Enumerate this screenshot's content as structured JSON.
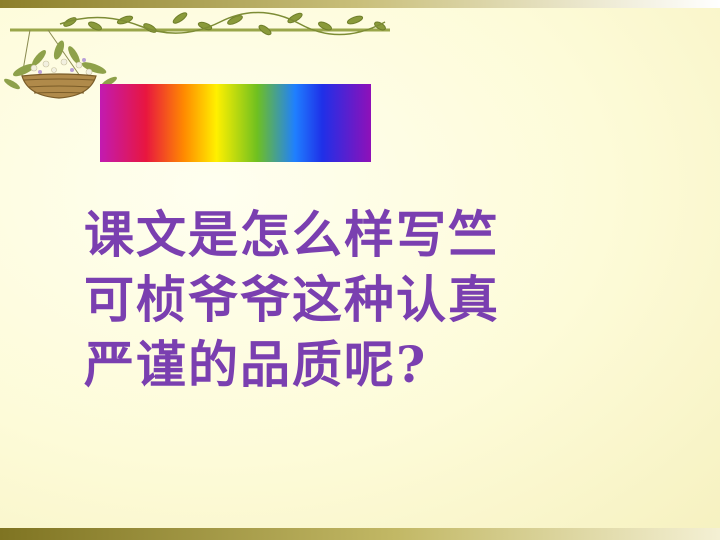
{
  "slide": {
    "question_lines": [
      "课文是怎么样写竺",
      "可桢爷爷这种认真",
      "严谨的品质呢?"
    ]
  },
  "colors": {
    "text": "#7a3fb0",
    "background": "#fdfbd9",
    "vine": "#8a9a3a"
  },
  "decorations": [
    "hanging-flower-basket-icon",
    "vine-border-icon",
    "rainbow-spectrum-bar"
  ]
}
